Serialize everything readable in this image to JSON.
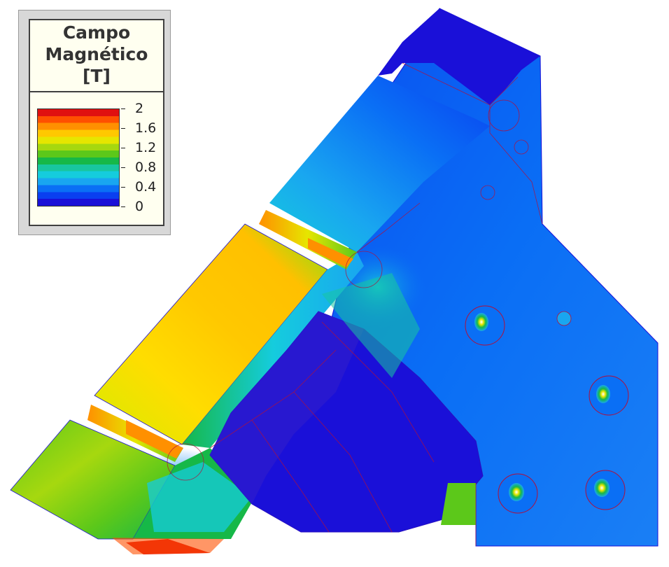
{
  "legend": {
    "title_line1": "Campo",
    "title_line2": "Magnético",
    "title_line3": "[T]",
    "ticks": [
      "2",
      "1.6",
      "1.2",
      "0.8",
      "0.4",
      "0"
    ]
  },
  "colormap": [
    "#1a10d8",
    "#0a3ff0",
    "#0a6ff5",
    "#19a6f0",
    "#15ccdd",
    "#18c6a0",
    "#16b848",
    "#5cc81a",
    "#a6d80f",
    "#e6e600",
    "#ffc800",
    "#ff9000",
    "#ff5000",
    "#e01010"
  ]
}
